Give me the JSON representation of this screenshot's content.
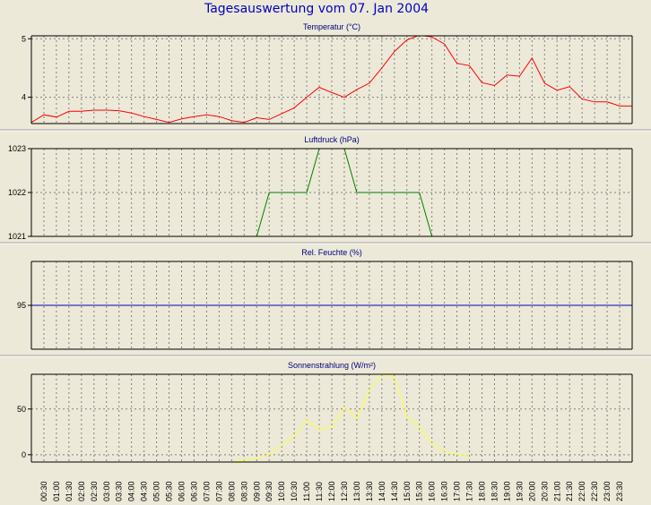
{
  "window": {
    "title": "Tagesauswertung vom 07. Jan 2004"
  },
  "colors": {
    "background": "#ece9d8",
    "title": "#0000c0",
    "panel_title": "#000080",
    "temperature": "#ff0000",
    "pressure": "#008000",
    "humidity": "#0000c0",
    "radiation": "#ffff40",
    "grid": "#808080"
  },
  "time_labels": [
    "00:30",
    "01:00",
    "01:30",
    "02:00",
    "02:30",
    "03:00",
    "03:30",
    "04:00",
    "04:30",
    "05:00",
    "05:30",
    "06:00",
    "06:30",
    "07:00",
    "07:30",
    "08:00",
    "08:30",
    "09:00",
    "09:30",
    "10:00",
    "10:30",
    "11:00",
    "11:30",
    "12:00",
    "12:30",
    "13:00",
    "13:30",
    "14:00",
    "14:30",
    "15:00",
    "15:30",
    "16:00",
    "16:30",
    "17:00",
    "17:30",
    "18:00",
    "18:30",
    "19:00",
    "19:30",
    "20:00",
    "20:30",
    "21:00",
    "21:30",
    "22:00",
    "22:30",
    "23:00",
    "23:30"
  ],
  "chart_data": [
    {
      "type": "line",
      "title": "Temperatur (°C)",
      "yticks": [
        4,
        5
      ],
      "ylim": [
        3.55,
        5.05
      ],
      "grid": true,
      "series": [
        {
          "color": "#ff0000",
          "x_hours": [
            0,
            0.5,
            1,
            1.5,
            2,
            2.5,
            3,
            3.5,
            4,
            4.5,
            5,
            5.5,
            6,
            6.5,
            7,
            7.5,
            8,
            8.5,
            9,
            9.5,
            10,
            10.5,
            11,
            11.5,
            12,
            12.5,
            13,
            13.5,
            14,
            14.5,
            15,
            15.5,
            16,
            16.5,
            17,
            17.5,
            18,
            18.5,
            19,
            19.5,
            20,
            20.5,
            21,
            21.5,
            22,
            22.5,
            23,
            23.5,
            24
          ],
          "values": [
            3.57,
            3.7,
            3.66,
            3.76,
            3.76,
            3.78,
            3.78,
            3.77,
            3.73,
            3.67,
            3.62,
            3.57,
            3.63,
            3.67,
            3.7,
            3.67,
            3.6,
            3.57,
            3.65,
            3.62,
            3.72,
            3.82,
            4.0,
            4.17,
            4.08,
            4.0,
            4.13,
            4.24,
            4.5,
            4.78,
            4.98,
            5.06,
            5.03,
            4.91,
            4.58,
            4.54,
            4.25,
            4.2,
            4.38,
            4.36,
            4.67,
            4.24,
            4.12,
            4.18,
            3.97,
            3.92,
            3.92,
            3.85,
            3.85
          ]
        }
      ]
    },
    {
      "type": "line",
      "title": "Luftdruck (hPa)",
      "yticks": [
        1021,
        1022,
        1023
      ],
      "ylim": [
        1021,
        1023
      ],
      "grid": true,
      "series": [
        {
          "color": "#008000",
          "x_hours": [
            9,
            9.5,
            10,
            10.5,
            11,
            11.5,
            12,
            12.5,
            13,
            13.5,
            14,
            14.5,
            15,
            15.5,
            16,
            16.5
          ],
          "values": [
            1021,
            1022,
            1022,
            1022,
            1022,
            1023,
            1023,
            1023,
            1022,
            1022,
            1022,
            1022,
            1022,
            1022,
            1021,
            1021
          ]
        }
      ]
    },
    {
      "type": "line",
      "title": "Rel. Feuchte (%)",
      "yticks": [
        95
      ],
      "ylim": [
        90,
        100
      ],
      "grid": true,
      "series": [
        {
          "color": "#0000c0",
          "x_hours": [
            0,
            24
          ],
          "values": [
            95,
            95
          ]
        }
      ]
    },
    {
      "type": "line",
      "title": "Sonnenstrahlung (W/m²)",
      "yticks": [
        0,
        50
      ],
      "ylim": [
        -8,
        88
      ],
      "grid": true,
      "series": [
        {
          "color": "#ffff40",
          "x_hours": [
            8,
            8.5,
            9,
            9.5,
            10,
            10.5,
            11,
            11.5,
            12,
            12.5,
            13,
            13.5,
            14,
            14.5,
            15,
            15.5,
            16,
            16.5,
            17,
            17.5
          ],
          "values": [
            -8,
            -6,
            -4,
            0,
            10,
            20,
            38,
            28,
            30,
            52,
            40,
            70,
            88,
            85,
            42,
            30,
            12,
            4,
            0,
            0
          ]
        }
      ]
    }
  ]
}
